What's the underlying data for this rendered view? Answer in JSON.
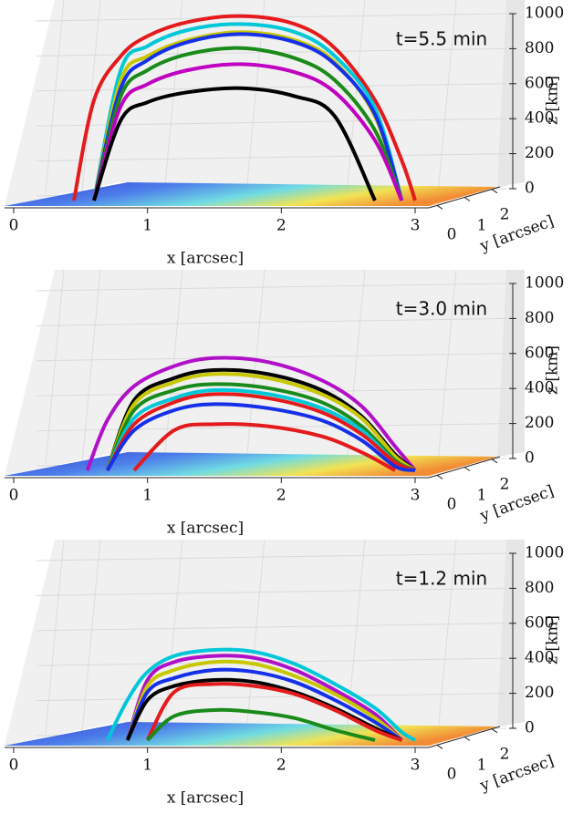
{
  "chart_data": [
    {
      "type": "loops3d",
      "annotation": "t=5.5 min",
      "xlabel": "x [arcsec]",
      "ylabel": "y [arcsec]",
      "zlabel": "z [km]",
      "xlim": [
        0,
        3
      ],
      "xticks": [
        0,
        1,
        2,
        3
      ],
      "yticks": [
        0,
        1,
        2
      ],
      "zlim": [
        0,
        1000
      ],
      "zticks": [
        0,
        200,
        400,
        600,
        800,
        1000
      ],
      "x": [
        0.45,
        0.6,
        0.8,
        1.0,
        1.3,
        1.7,
        2.1,
        2.4,
        2.7,
        2.9,
        3.0
      ],
      "series": [
        {
          "color": "#e41a1c",
          "values": [
            0,
            500,
            720,
            820,
            890,
            920,
            880,
            760,
            500,
            200,
            0
          ]
        },
        {
          "color": "#00c8d8",
          "values": [
            null,
            0,
            650,
            770,
            850,
            880,
            840,
            720,
            460,
            0,
            null
          ]
        },
        {
          "color": "#c8c800",
          "values": [
            null,
            0,
            600,
            720,
            800,
            840,
            800,
            690,
            420,
            0,
            null
          ]
        },
        {
          "color": "#1530e8",
          "values": [
            null,
            0,
            560,
            700,
            790,
            830,
            790,
            680,
            430,
            0,
            null
          ]
        },
        {
          "color": "#1a8a1a",
          "values": [
            null,
            0,
            520,
            650,
            730,
            760,
            710,
            600,
            350,
            0,
            null
          ]
        },
        {
          "color": "#c000c0",
          "values": [
            null,
            0,
            470,
            580,
            650,
            680,
            640,
            540,
            300,
            0,
            null
          ]
        },
        {
          "color": "#000000",
          "values": [
            null,
            0,
            400,
            490,
            540,
            560,
            520,
            420,
            0,
            null,
            null
          ]
        }
      ]
    },
    {
      "type": "loops3d",
      "annotation": "t=3.0 min",
      "xlabel": "x [arcsec]",
      "ylabel": "y [arcsec]",
      "zlabel": "z [km]",
      "xlim": [
        0,
        3
      ],
      "xticks": [
        0,
        1,
        2,
        3
      ],
      "yticks": [
        0,
        1,
        2
      ],
      "zlim": [
        0,
        1000
      ],
      "zticks": [
        0,
        200,
        400,
        600,
        800,
        1000
      ],
      "x": [
        0.55,
        0.7,
        0.9,
        1.2,
        1.5,
        1.9,
        2.3,
        2.6,
        2.85,
        3.0
      ],
      "series": [
        {
          "color": "#b010c8",
          "values": [
            0,
            250,
            420,
            520,
            560,
            540,
            450,
            320,
            120,
            0
          ]
        },
        {
          "color": "#000000",
          "values": [
            null,
            0,
            350,
            460,
            500,
            480,
            400,
            270,
            80,
            0
          ]
        },
        {
          "color": "#c8c800",
          "values": [
            null,
            0,
            330,
            440,
            480,
            460,
            380,
            260,
            70,
            0
          ]
        },
        {
          "color": "#1a8a1a",
          "values": [
            null,
            0,
            300,
            400,
            430,
            410,
            340,
            220,
            50,
            0
          ]
        },
        {
          "color": "#00c8d8",
          "values": [
            null,
            0,
            260,
            360,
            400,
            380,
            310,
            200,
            40,
            0
          ]
        },
        {
          "color": "#e41a1c",
          "values": [
            null,
            0,
            230,
            340,
            380,
            360,
            290,
            180,
            40,
            0
          ]
        },
        {
          "color": "#1530e8",
          "values": [
            null,
            0,
            200,
            300,
            330,
            310,
            250,
            150,
            20,
            0
          ]
        },
        {
          "color": "#e41a1c",
          "values": [
            null,
            null,
            0,
            200,
            230,
            220,
            170,
            90,
            0,
            null
          ]
        }
      ]
    },
    {
      "type": "loops3d",
      "annotation": "t=1.2 min",
      "xlabel": "x [arcsec]",
      "ylabel": "y [arcsec]",
      "zlabel": "z [km]",
      "xlim": [
        0,
        3
      ],
      "xticks": [
        0,
        1,
        2,
        3
      ],
      "yticks": [
        0,
        1,
        2
      ],
      "zlim": [
        0,
        1000
      ],
      "zticks": [
        0,
        200,
        400,
        600,
        800,
        1000
      ],
      "x": [
        0.7,
        0.85,
        1.0,
        1.2,
        1.5,
        1.8,
        2.1,
        2.4,
        2.7,
        2.9,
        3.0
      ],
      "series": [
        {
          "color": "#00c8d8",
          "values": [
            0,
            200,
            340,
            420,
            450,
            440,
            380,
            280,
            160,
            40,
            0
          ]
        },
        {
          "color": "#b010c8",
          "values": [
            null,
            0,
            300,
            390,
            420,
            410,
            350,
            250,
            130,
            0,
            null
          ]
        },
        {
          "color": "#c8c800",
          "values": [
            null,
            0,
            270,
            350,
            390,
            380,
            320,
            230,
            110,
            0,
            null
          ]
        },
        {
          "color": "#1530e8",
          "values": [
            null,
            0,
            240,
            310,
            350,
            340,
            290,
            200,
            90,
            0,
            null
          ]
        },
        {
          "color": "#000000",
          "values": [
            null,
            0,
            200,
            270,
            300,
            290,
            240,
            160,
            60,
            0,
            null
          ]
        },
        {
          "color": "#e41a1c",
          "values": [
            null,
            null,
            0,
            240,
            280,
            270,
            230,
            150,
            50,
            0,
            null
          ]
        },
        {
          "color": "#1a8a1a",
          "values": [
            null,
            null,
            0,
            120,
            150,
            140,
            110,
            50,
            0,
            null,
            null
          ]
        }
      ]
    }
  ]
}
